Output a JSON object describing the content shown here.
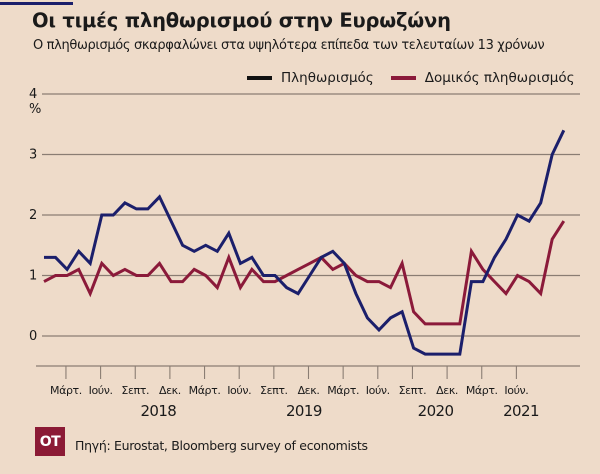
{
  "header": {
    "title": "Οι τιμές πληθωρισμού στην Ευρωζώνη",
    "subtitle": "Ο πληθωρισμός σκαρφαλώνει στα υψηλότερα επίπεδα των τελευταίων 13 χρόνων"
  },
  "footer": {
    "logo_text": "ΟΤ",
    "source": "Πηγή: Eurostat, Bloomberg survey of economists"
  },
  "chart_data": {
    "type": "line",
    "title": "Οι τιμές πληθωρισμού στην Ευρωζώνη",
    "subtitle": "Ο πληθωρισμός σκαρφαλώνει στα υψηλότερα επίπεδα των τελευταίων 13 χρόνων",
    "ylabel": "%",
    "xlabel": "",
    "ylim": [
      -0.5,
      4
    ],
    "yticks": [
      0,
      1,
      2,
      3,
      4
    ],
    "grid": true,
    "legend_position": "top-right",
    "x": [
      "Δεκ. 2017",
      "Ιαν. 2018",
      "Φεβ. 2018",
      "Μάρτ. 2018",
      "Απρ. 2018",
      "Μάι. 2018",
      "Ιούν. 2018",
      "Ιούλ. 2018",
      "Αύγ. 2018",
      "Σεπτ. 2018",
      "Οκτ. 2018",
      "Νοέ. 2018",
      "Δεκ. 2018",
      "Ιαν. 2019",
      "Φεβ. 2019",
      "Μάρτ. 2019",
      "Απρ. 2019",
      "Μάι. 2019",
      "Ιούν. 2019",
      "Ιούλ. 2019",
      "Αύγ. 2019",
      "Σεπτ. 2019",
      "Οκτ. 2019",
      "Νοέ. 2019",
      "Δεκ. 2019",
      "Ιαν. 2020",
      "Φεβ. 2020",
      "Μάρτ. 2020",
      "Απρ. 2020",
      "Μάι. 2020",
      "Ιούν. 2020",
      "Ιούλ. 2020",
      "Αύγ. 2020",
      "Σεπτ. 2020",
      "Οκτ. 2020",
      "Νοέ. 2020",
      "Δεκ. 2020",
      "Ιαν. 2021",
      "Φεβ. 2021",
      "Μάρτ. 2021",
      "Απρ. 2021",
      "Μάι. 2021",
      "Ιούν. 2021",
      "Ιούλ. 2021",
      "Αύγ. 2021",
      "Σεπτ. 2021"
    ],
    "series": [
      {
        "name": "Πληθωρισμός",
        "color": "#1b1f6b",
        "legend_color": "#111111",
        "values": [
          1.3,
          1.3,
          1.1,
          1.4,
          1.2,
          2.0,
          2.0,
          2.2,
          2.1,
          2.1,
          2.3,
          1.9,
          1.5,
          1.4,
          1.5,
          1.4,
          1.7,
          1.2,
          1.3,
          1.0,
          1.0,
          0.8,
          0.7,
          1.0,
          1.3,
          1.4,
          1.2,
          0.7,
          0.3,
          0.1,
          0.3,
          0.4,
          -0.2,
          -0.3,
          -0.3,
          -0.3,
          -0.3,
          0.9,
          0.9,
          1.3,
          1.6,
          2.0,
          1.9,
          2.2,
          3.0,
          3.4
        ]
      },
      {
        "name": "Δομικός πληθωρισμός",
        "color": "#8b1a3a",
        "legend_color": "#8b1a3a",
        "values": [
          0.9,
          1.0,
          1.0,
          1.1,
          0.7,
          1.2,
          1.0,
          1.1,
          1.0,
          1.0,
          1.2,
          0.9,
          0.9,
          1.1,
          1.0,
          0.8,
          1.3,
          0.8,
          1.1,
          0.9,
          0.9,
          1.0,
          1.1,
          1.2,
          1.3,
          1.1,
          1.2,
          1.0,
          0.9,
          0.9,
          0.8,
          1.2,
          0.4,
          0.2,
          0.2,
          0.2,
          0.2,
          1.4,
          1.1,
          0.9,
          0.7,
          1.0,
          0.9,
          0.7,
          1.6,
          1.9
        ]
      }
    ],
    "x_ticks": [
      {
        "label": "Μάρτ.",
        "month_index": 3
      },
      {
        "label": "Ιούν.",
        "month_index": 6
      },
      {
        "label": "Σεπτ.",
        "month_index": 9
      },
      {
        "label": "Δεκ.",
        "month_index": 12
      },
      {
        "label": "Μάρτ.",
        "month_index": 15
      },
      {
        "label": "Ιούν.",
        "month_index": 18
      },
      {
        "label": "Σεπτ.",
        "month_index": 21
      },
      {
        "label": "Δεκ.",
        "month_index": 24
      },
      {
        "label": "Μάρτ.",
        "month_index": 27
      },
      {
        "label": "Ιούν.",
        "month_index": 30
      },
      {
        "label": "Σεπτ.",
        "month_index": 33
      },
      {
        "label": "Δεκ.",
        "month_index": 36
      },
      {
        "label": "Μάρτ.",
        "month_index": 39
      },
      {
        "label": "Ιούν.",
        "month_index": 42
      }
    ],
    "year_labels": [
      {
        "label": "2018",
        "month_index": 11
      },
      {
        "label": "2019",
        "month_index": 23.6
      },
      {
        "label": "2020",
        "month_index": 35
      },
      {
        "label": "2021",
        "month_index": 42.4
      }
    ]
  }
}
